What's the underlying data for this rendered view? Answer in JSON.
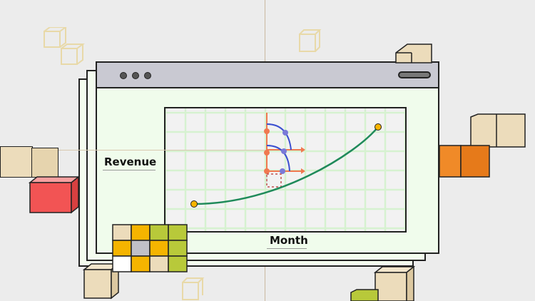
{
  "window": {
    "title_dots": [
      "window-dot-1",
      "window-dot-2",
      "window-dot-3"
    ]
  },
  "chart_data": {
    "type": "line",
    "xlabel": "Month",
    "ylabel": "Revenue",
    "title": "",
    "grid": true,
    "series": [
      {
        "start": [
          0,
          0
        ],
        "end": [
          1,
          1
        ]
      }
    ]
  },
  "colors": {
    "curve": "#1f8a5a",
    "endpoint": "#f5b400",
    "handle_blue": "#3b4fd0",
    "handle_orange": "#f07850",
    "grid": "#d6f2d0",
    "cube_beige": "#ecdcbb",
    "cube_red": "#f25454",
    "cube_orange": "#f08a28",
    "cube_green": "#b8c93a"
  }
}
